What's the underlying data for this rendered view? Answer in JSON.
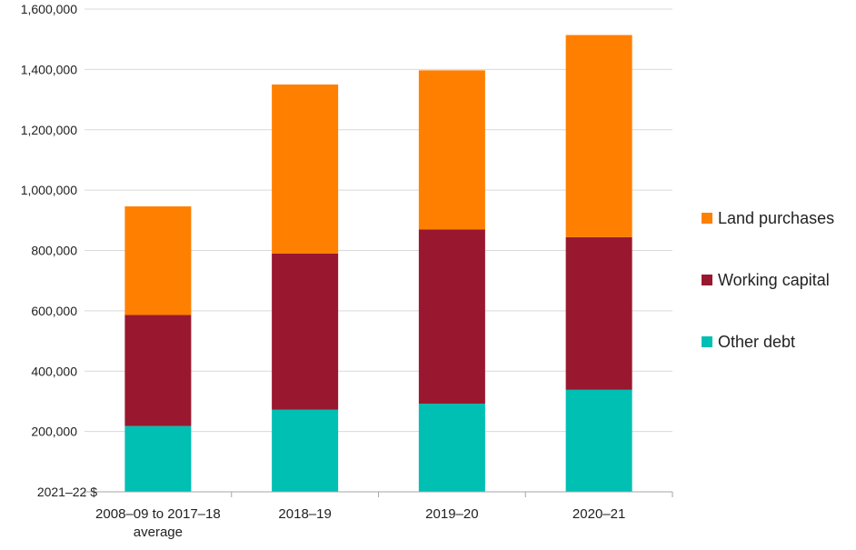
{
  "chart_data": {
    "type": "bar",
    "stacked": true,
    "title": "",
    "xlabel": "",
    "ylabel": "",
    "unit_label": "2021–22 $",
    "categories": [
      [
        "2008–09 to 2017–18",
        "average"
      ],
      [
        "2018–19"
      ],
      [
        "2019–20"
      ],
      [
        "2020–21"
      ]
    ],
    "series": [
      {
        "name": "Other debt",
        "color": "#00BFB3",
        "values": [
          218000,
          272000,
          292000,
          338000
        ]
      },
      {
        "name": "Working capital",
        "color": "#99182F",
        "values": [
          368000,
          518000,
          578000,
          506000
        ]
      },
      {
        "name": "Land purchases",
        "color": "#FF7F00",
        "values": [
          360000,
          560000,
          527000,
          670000
        ]
      }
    ],
    "yticks": [
      200000,
      400000,
      600000,
      800000,
      1000000,
      1200000,
      1400000,
      1600000
    ],
    "ytick_labels": [
      "200,000",
      "400,000",
      "600,000",
      "800,000",
      "1,000,000",
      "1,200,000",
      "1,400,000",
      "1,600,000"
    ],
    "ylim": [
      0,
      1600000
    ],
    "grid": true,
    "legend_position": "right",
    "legend_order": [
      "Land purchases",
      "Working capital",
      "Other debt"
    ],
    "gridline_color": "#d9d9d9",
    "axis_color": "#a6a6a6"
  }
}
